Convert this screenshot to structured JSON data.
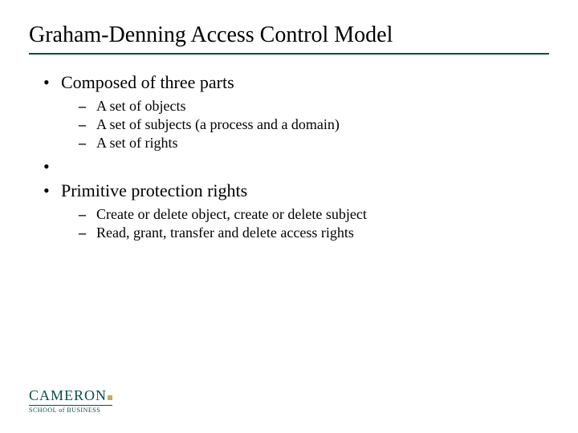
{
  "colors": {
    "title_underline": "#004d40",
    "text": "#000000",
    "background": "#ffffff",
    "logo_text": "#0a4f46",
    "logo_accent": "#c9a960"
  },
  "typography": {
    "title_fontsize": 28,
    "body_fontsize": 22,
    "sub_fontsize": 18,
    "font_family": "Times New Roman"
  },
  "title": "Graham-Denning Access Control Model",
  "bullets": [
    {
      "text": "Composed of three parts",
      "sub": [
        "A set of objects",
        "A set of subjects (a process and a domain)",
        "A set of rights"
      ]
    },
    {
      "text": "",
      "sub": []
    },
    {
      "text": "Primitive protection rights",
      "sub": [
        "Create or delete object, create or delete subject",
        "Read, grant, transfer and delete access rights"
      ]
    }
  ],
  "logo": {
    "main": "CAMERON",
    "sub": "SCHOOL of BUSINESS"
  }
}
